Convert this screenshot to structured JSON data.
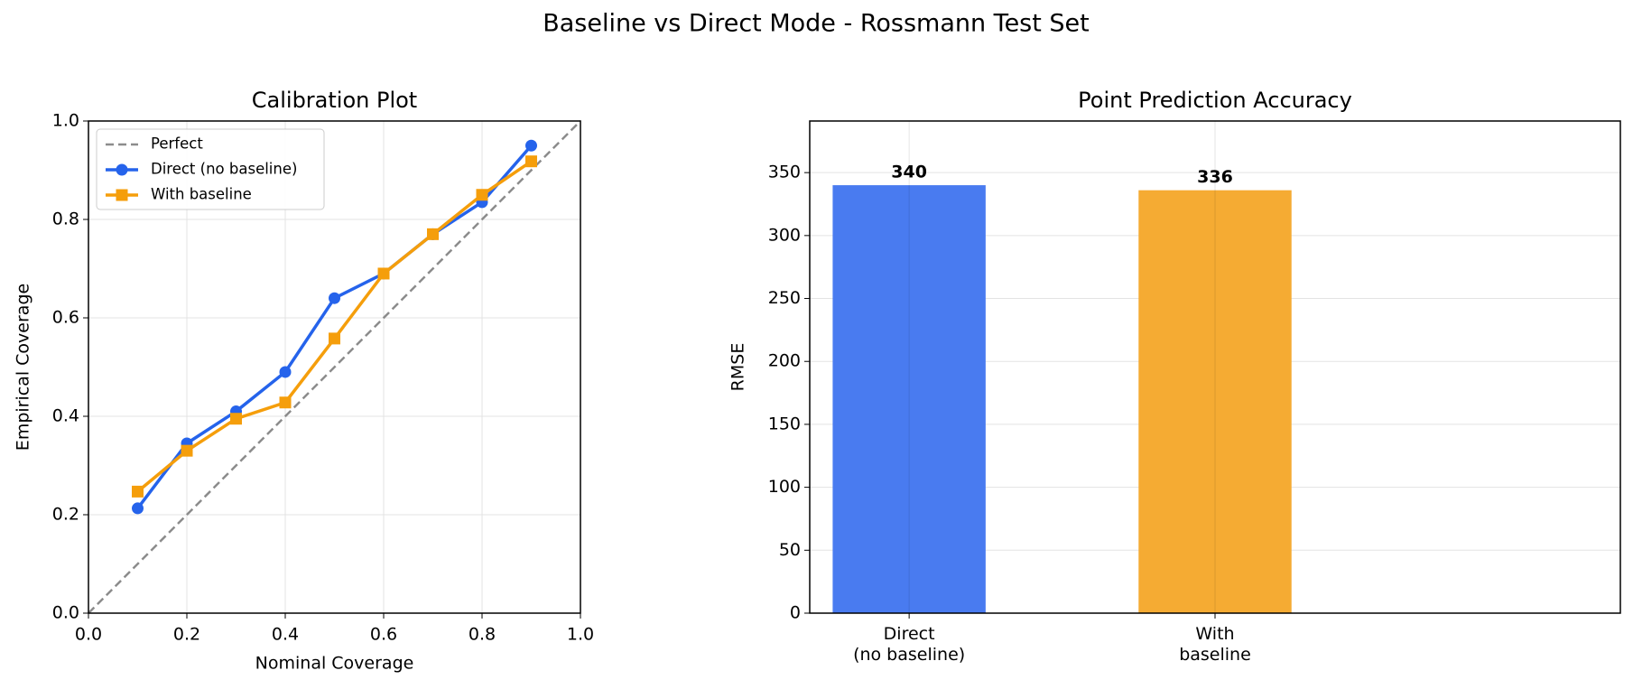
{
  "title": "Baseline vs Direct Mode - Rossmann Test Set",
  "chart_data": [
    {
      "type": "line",
      "title": "Calibration Plot",
      "x_label": "Nominal Coverage",
      "y_label": "Empirical Coverage",
      "xlim": [
        0,
        1
      ],
      "ylim": [
        0,
        1
      ],
      "xticks": [
        {
          "value": 0,
          "label": "0.0"
        },
        0.2,
        0.4,
        0.6,
        0.8,
        {
          "value": 1,
          "label": "1.0"
        }
      ],
      "yticks": [
        {
          "value": 0,
          "label": "0.0"
        },
        0.2,
        0.4,
        0.6,
        0.8,
        {
          "value": 1,
          "label": "1.0"
        }
      ],
      "grid": true,
      "legend": "upper left",
      "series": [
        {
          "name": "Perfect",
          "color": "#8c8c8c",
          "linestyle": "dashed",
          "x": [
            0,
            1
          ],
          "values": [
            0,
            1
          ]
        },
        {
          "name": "Direct (no baseline)",
          "color": "#2563eb",
          "marker": "circle",
          "x": [
            0.1,
            0.2,
            0.3,
            0.4,
            0.5,
            0.6,
            0.7,
            0.8,
            0.9
          ],
          "values": [
            0.213,
            0.345,
            0.41,
            0.49,
            0.64,
            0.69,
            0.77,
            0.835,
            0.95
          ]
        },
        {
          "name": "With baseline",
          "color": "#f59e0b",
          "marker": "square",
          "x": [
            0.1,
            0.2,
            0.3,
            0.4,
            0.5,
            0.6,
            0.7,
            0.8,
            0.9
          ],
          "values": [
            0.247,
            0.33,
            0.395,
            0.428,
            0.558,
            0.69,
            0.77,
            0.85,
            0.918
          ]
        }
      ]
    },
    {
      "type": "bar",
      "title": "Point Prediction Accuracy",
      "y_label": "RMSE",
      "categories": [
        "Direct\n(no baseline)",
        "With\nbaseline"
      ],
      "values": [
        340,
        336
      ],
      "colors": [
        "#497bf0",
        "#f5ab33"
      ],
      "ylim": [
        0,
        391
      ],
      "yticks": [
        0,
        50,
        100,
        150,
        200,
        250,
        300,
        350
      ],
      "grid": true
    }
  ]
}
